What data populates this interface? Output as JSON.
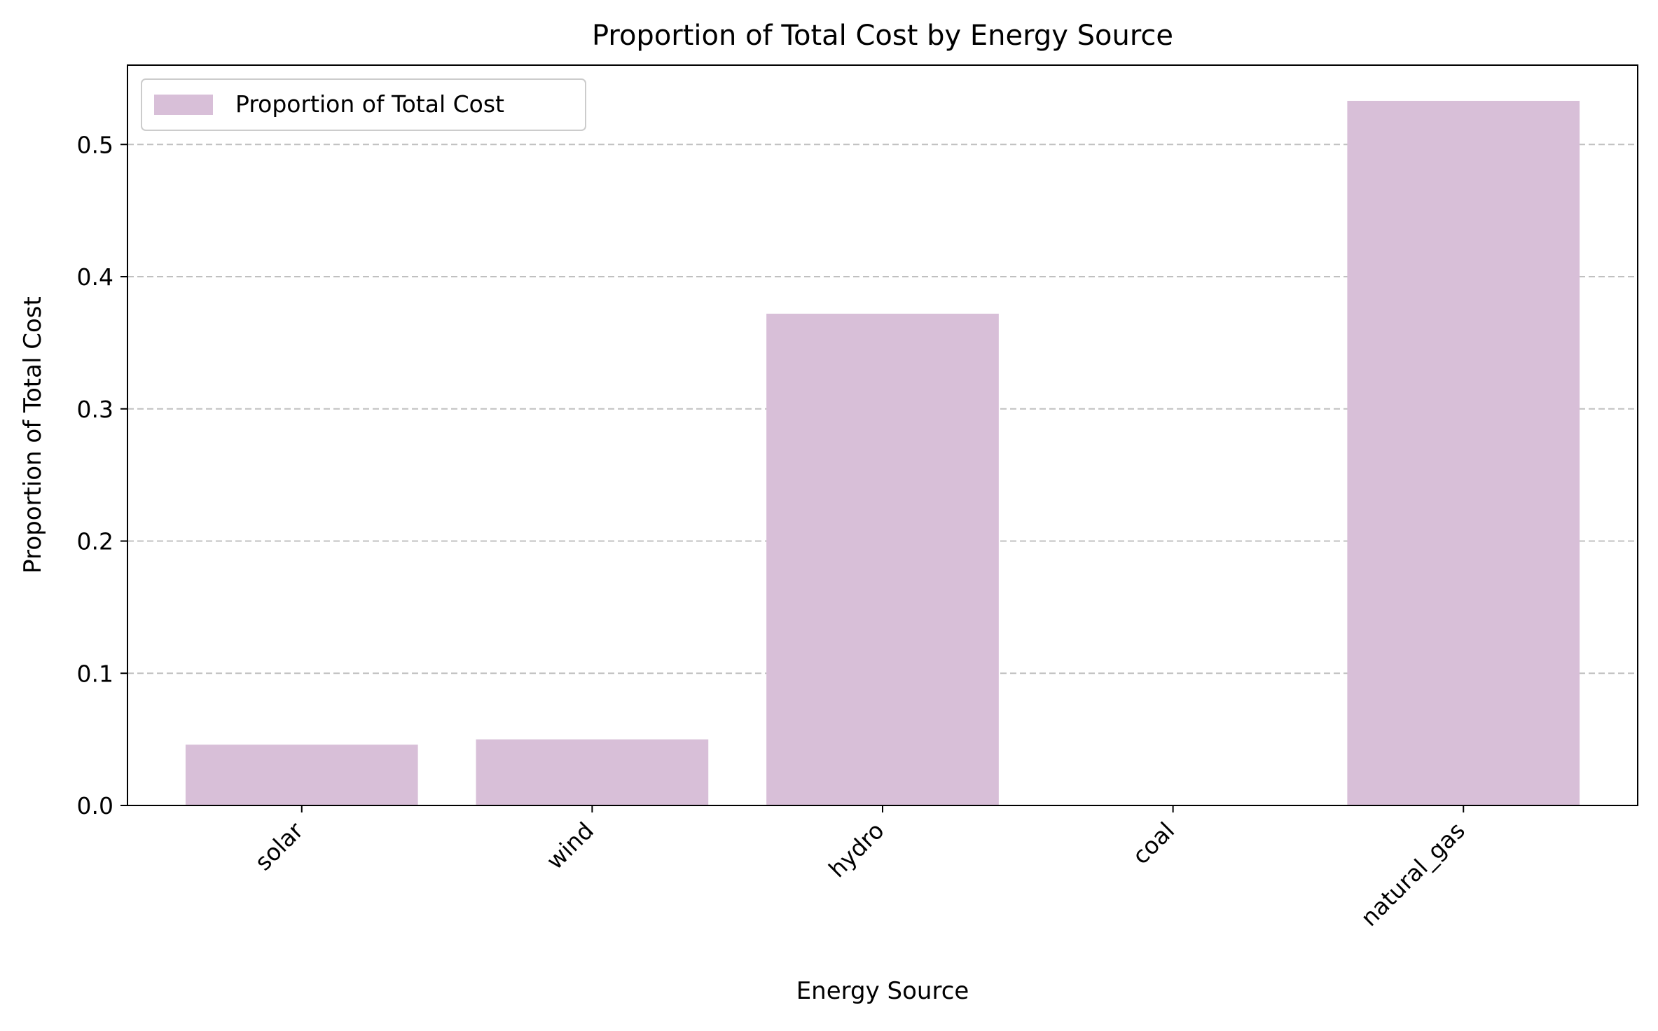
{
  "chart_data": {
    "type": "bar",
    "title": "Proportion of Total Cost by Energy Source",
    "xlabel": "Energy Source",
    "ylabel": "Proportion of Total Cost",
    "categories": [
      "solar",
      "wind",
      "hydro",
      "coal",
      "natural_gas"
    ],
    "series": [
      {
        "name": "Proportion of Total Cost",
        "values": [
          0.046,
          0.05,
          0.372,
          0.0,
          0.533
        ]
      }
    ],
    "ylim": [
      0,
      0.56
    ],
    "yticks": [
      0.0,
      0.1,
      0.2,
      0.3,
      0.4,
      0.5
    ],
    "ytick_labels": [
      "0.0",
      "0.1",
      "0.2",
      "0.3",
      "0.4",
      "0.5"
    ],
    "grid": "y-dashed",
    "legend_position": "top-left",
    "colors": {
      "bar": "#d8bfd8",
      "grid": "#c0c0c0",
      "axis": "#000000"
    }
  }
}
